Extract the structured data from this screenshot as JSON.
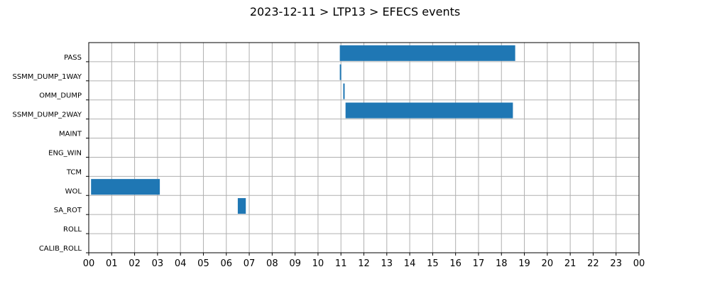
{
  "chart_data": {
    "type": "bar",
    "orientation": "horizontal-gantt",
    "title": "2023-12-11 > LTP13 > EFECS events",
    "xlabel": "",
    "ylabel": "",
    "xlim": [
      0,
      24
    ],
    "x_tick_labels": [
      "00",
      "01",
      "02",
      "03",
      "04",
      "05",
      "06",
      "07",
      "08",
      "09",
      "10",
      "11",
      "12",
      "13",
      "14",
      "15",
      "16",
      "17",
      "18",
      "19",
      "20",
      "21",
      "22",
      "23",
      "00"
    ],
    "categories": [
      "PASS",
      "SSMM_DUMP_1WAY",
      "OMM_DUMP",
      "SSMM_DUMP_2WAY",
      "MAINT",
      "ENG_WIN",
      "TCM",
      "WOL",
      "SA_ROT",
      "ROLL",
      "CALIB_ROLL"
    ],
    "grid": true,
    "bar_color": "#1f77b4",
    "events": [
      {
        "category": "PASS",
        "start": 10.95,
        "end": 18.6
      },
      {
        "category": "SSMM_DUMP_1WAY",
        "start": 10.95,
        "end": 11.0
      },
      {
        "category": "OMM_DUMP",
        "start": 11.1,
        "end": 11.15
      },
      {
        "category": "SSMM_DUMP_2WAY",
        "start": 11.2,
        "end": 18.5
      },
      {
        "category": "WOL",
        "start": 0.1,
        "end": 3.1
      },
      {
        "category": "SA_ROT",
        "start": 6.5,
        "end": 6.85
      }
    ]
  }
}
